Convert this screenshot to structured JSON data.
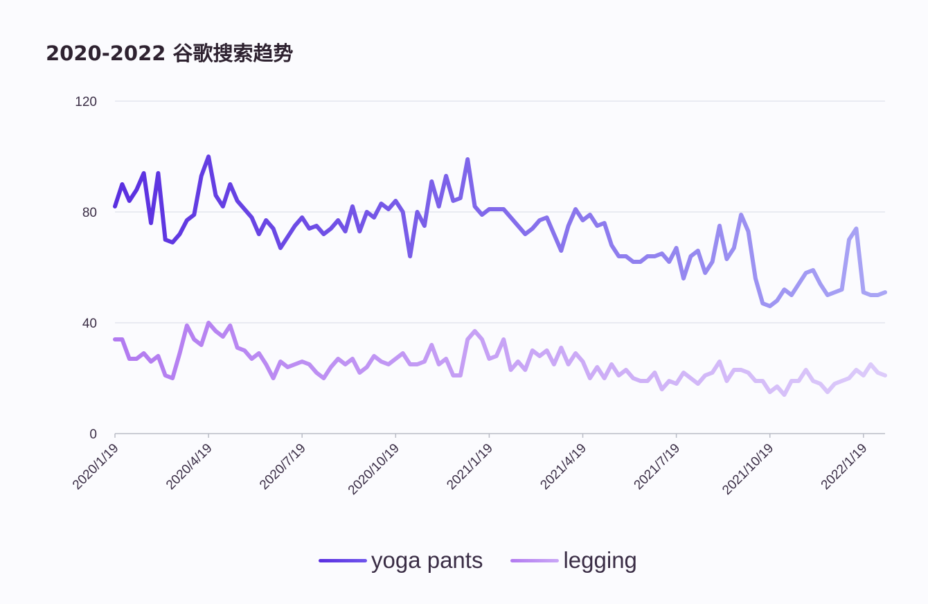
{
  "title": "2020-2022 谷歌搜索趋势",
  "legend": {
    "items": [
      {
        "label": "yoga pants",
        "color": "#5a2fe0"
      },
      {
        "label": "legging",
        "color": "#b27af0"
      }
    ]
  },
  "chart_data": {
    "type": "line",
    "title": "2020-2022 谷歌搜索趋势",
    "xlabel": "",
    "ylabel": "",
    "ylim": [
      0,
      120
    ],
    "yticks": [
      0,
      40,
      80,
      120
    ],
    "grid": true,
    "legend_position": "bottom",
    "x_tick_labels": [
      "2020/1/19",
      "2020/4/19",
      "2020/7/19",
      "2020/10/19",
      "2021/1/19",
      "2021/4/19",
      "2021/7/19",
      "2021/10/19",
      "2022/1/19"
    ],
    "x_start": "2020/1/19",
    "x_interval": "weekly",
    "series": [
      {
        "name": "yoga pants",
        "color_start": "#5a2fe0",
        "color_end": "#aaa6f5",
        "values": [
          82,
          90,
          84,
          88,
          94,
          76,
          94,
          70,
          69,
          72,
          77,
          79,
          93,
          100,
          86,
          82,
          90,
          84,
          81,
          78,
          72,
          77,
          74,
          67,
          71,
          75,
          78,
          74,
          75,
          72,
          74,
          77,
          73,
          82,
          73,
          80,
          78,
          83,
          81,
          84,
          80,
          64,
          80,
          75,
          91,
          82,
          93,
          84,
          85,
          99,
          82,
          79,
          81,
          81,
          81,
          78,
          75,
          72,
          74,
          77,
          78,
          72,
          66,
          75,
          81,
          77,
          79,
          75,
          76,
          68,
          64,
          64,
          62,
          62,
          64,
          64,
          65,
          62,
          67,
          56,
          64,
          66,
          58,
          62,
          75,
          63,
          67,
          79,
          73,
          56,
          47,
          46,
          48,
          52,
          50,
          54,
          58,
          59,
          54,
          50,
          51,
          52,
          70,
          74,
          51,
          50,
          50,
          51
        ]
      },
      {
        "name": "legging",
        "color_start": "#b27af0",
        "color_end": "#dccbfa",
        "values": [
          34,
          34,
          27,
          27,
          29,
          26,
          28,
          21,
          20,
          29,
          39,
          34,
          32,
          40,
          37,
          35,
          39,
          31,
          30,
          27,
          29,
          25,
          20,
          26,
          24,
          25,
          26,
          25,
          22,
          20,
          24,
          27,
          25,
          27,
          22,
          24,
          28,
          26,
          25,
          27,
          29,
          25,
          25,
          26,
          32,
          25,
          27,
          21,
          21,
          34,
          37,
          34,
          27,
          28,
          34,
          23,
          26,
          23,
          30,
          28,
          30,
          25,
          31,
          25,
          29,
          26,
          20,
          24,
          20,
          25,
          21,
          23,
          20,
          19,
          19,
          22,
          16,
          19,
          18,
          22,
          20,
          18,
          21,
          22,
          26,
          19,
          23,
          23,
          22,
          19,
          19,
          15,
          17,
          14,
          19,
          19,
          23,
          19,
          18,
          15,
          18,
          19,
          20,
          23,
          21,
          25,
          22,
          21
        ]
      }
    ]
  }
}
